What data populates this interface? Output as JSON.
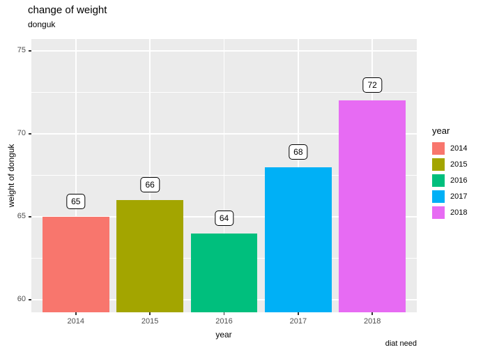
{
  "chart_data": {
    "type": "bar",
    "title": "change of weight",
    "subtitle": "donguk",
    "caption": "diat need",
    "xlabel": "year",
    "ylabel": "weight of donguk",
    "categories": [
      "2014",
      "2015",
      "2016",
      "2017",
      "2018"
    ],
    "values": [
      65,
      66,
      64,
      68,
      72
    ],
    "data_labels": [
      "65",
      "66",
      "64",
      "68",
      "72"
    ],
    "bar_colors": [
      "#F8766D",
      "#A3A500",
      "#00BF7D",
      "#00B0F6",
      "#E76BF3"
    ],
    "ylim": [
      59.24,
      75.71
    ],
    "yticks": [
      60,
      65,
      70,
      75
    ],
    "yminor_ticks": [
      62.5,
      67.5,
      72.5
    ],
    "grid": "on",
    "legend": {
      "title": "year",
      "position": "right",
      "entries": [
        {
          "label": "2014",
          "color": "#F8766D"
        },
        {
          "label": "2015",
          "color": "#A3A500"
        },
        {
          "label": "2016",
          "color": "#00BF7D"
        },
        {
          "label": "2017",
          "color": "#00B0F6"
        },
        {
          "label": "2018",
          "color": "#E76BF3"
        }
      ]
    },
    "style": {
      "panel_background": "#EBEBEB",
      "grid_color": "#FFFFFF",
      "axis_text_color": "#4D4D4D",
      "tick_mark_color": "#333333",
      "label_box_background": "#FFFFFF",
      "label_box_border": "#000000",
      "text_color": "#000000"
    }
  }
}
